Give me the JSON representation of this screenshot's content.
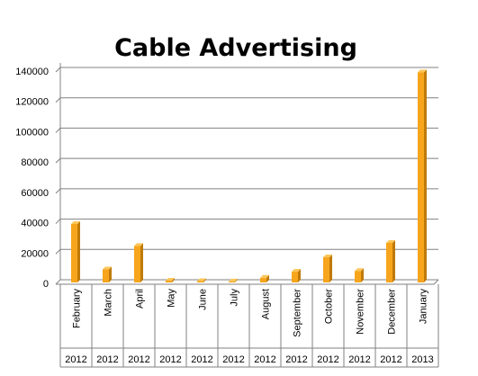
{
  "chart_data": {
    "type": "bar",
    "title": "Cable Advertising",
    "xlabel": "",
    "ylabel": "",
    "ylim": [
      0,
      140000
    ],
    "yticks": [
      "0",
      "20000",
      "40000",
      "60000",
      "80000",
      "100000",
      "120000",
      "140000"
    ],
    "categories": [
      {
        "month": "February",
        "year": "2012"
      },
      {
        "month": "March",
        "year": "2012"
      },
      {
        "month": "April",
        "year": "2012"
      },
      {
        "month": "May",
        "year": "2012"
      },
      {
        "month": "June",
        "year": "2012"
      },
      {
        "month": "July",
        "year": "2012"
      },
      {
        "month": "August",
        "year": "2012"
      },
      {
        "month": "September",
        "year": "2012"
      },
      {
        "month": "October",
        "year": "2012"
      },
      {
        "month": "November",
        "year": "2012"
      },
      {
        "month": "December",
        "year": "2012"
      },
      {
        "month": "January",
        "year": "2013"
      }
    ],
    "values": [
      38000,
      8000,
      23500,
      600,
      300,
      100,
      2500,
      6500,
      16000,
      7000,
      25500,
      138000
    ],
    "grid": true,
    "legend": "none",
    "colors": {
      "bar_front": "#f7a51c",
      "bar_side": "#c07a0a",
      "bar_top": "#fcc65a",
      "grid": "#808080"
    }
  }
}
